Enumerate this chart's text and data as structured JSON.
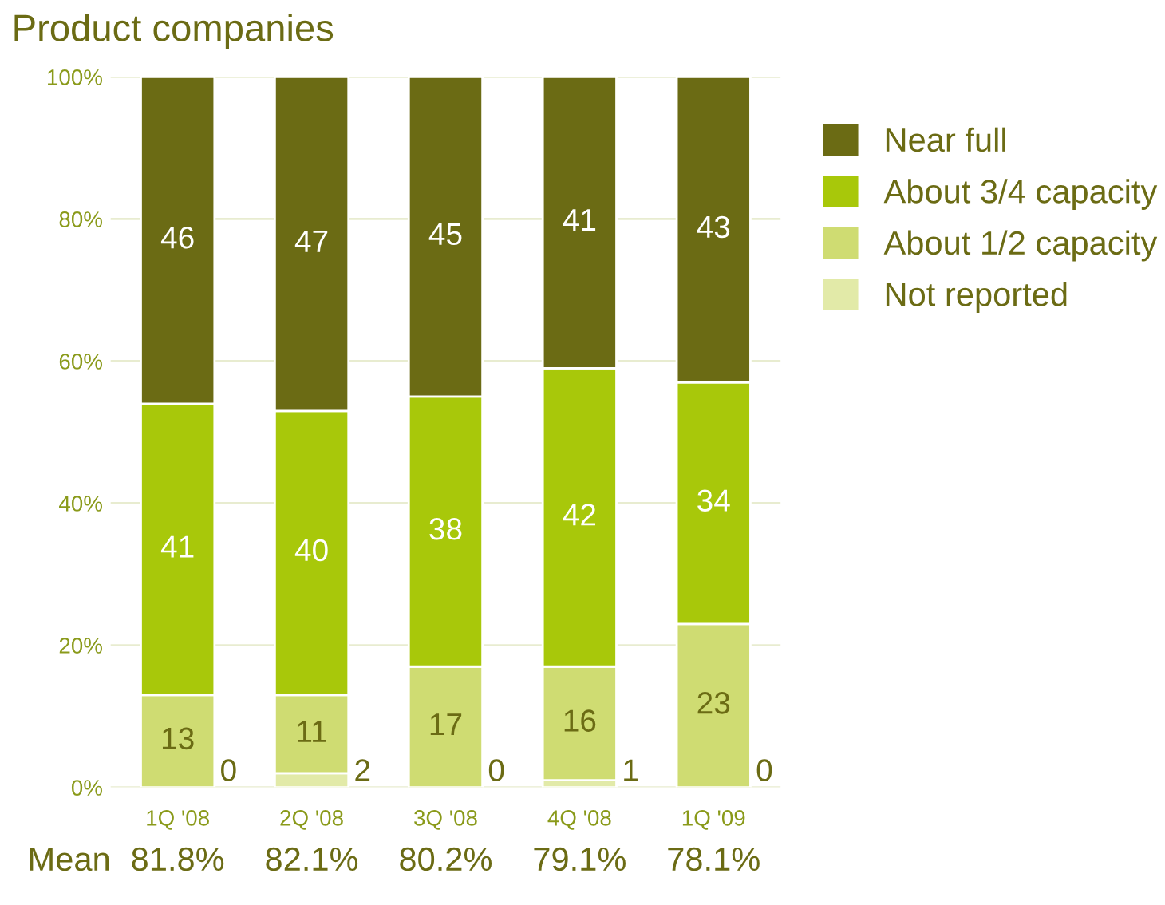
{
  "chart_data": {
    "type": "bar",
    "title": "Product companies",
    "stacked": true,
    "categories": [
      "1Q '08",
      "2Q '08",
      "3Q '08",
      "4Q '08",
      "1Q '09"
    ],
    "series": [
      {
        "name": "Not reported",
        "color": "#e2eaa8",
        "values": [
          0,
          2,
          0,
          1,
          0
        ],
        "value_labels": [
          null,
          "2",
          null,
          "1",
          null
        ]
      },
      {
        "name": "About 1/2 capacity",
        "color": "#cfdc72",
        "values": [
          13,
          11,
          17,
          16,
          23
        ],
        "value_labels": [
          "13",
          "11",
          "17",
          "16",
          "23"
        ]
      },
      {
        "name": "About 3/4 capacity",
        "color": "#a8c80a",
        "values": [
          41,
          40,
          38,
          42,
          34
        ],
        "value_labels": [
          "41",
          "40",
          "38",
          "42",
          "34"
        ]
      },
      {
        "name": "Near full",
        "color": "#6b6b14",
        "values": [
          46,
          47,
          45,
          41,
          43
        ],
        "value_labels": [
          "46",
          "47",
          "45",
          "41",
          "43"
        ]
      }
    ],
    "ylim": [
      0,
      100
    ],
    "yticks": [
      {
        "value": 0,
        "label": "0%"
      },
      {
        "value": 20,
        "label": "20%"
      },
      {
        "value": 40,
        "label": "40%"
      },
      {
        "value": 60,
        "label": "60%"
      },
      {
        "value": 80,
        "label": "80%"
      },
      {
        "value": 100,
        "label": "100%"
      }
    ],
    "grid": "y",
    "legend": "right",
    "annotations": [
      "Mean",
      "81.8%",
      "82.1%",
      "80.2%",
      "79.1%",
      "78.1%",
      {
        "text": "0",
        "x": "1Q '08",
        "y": 0
      },
      {
        "text": "0",
        "x": "3Q '08",
        "y": 0
      },
      {
        "text": "0",
        "x": "1Q '09",
        "y": 0
      }
    ]
  }
}
